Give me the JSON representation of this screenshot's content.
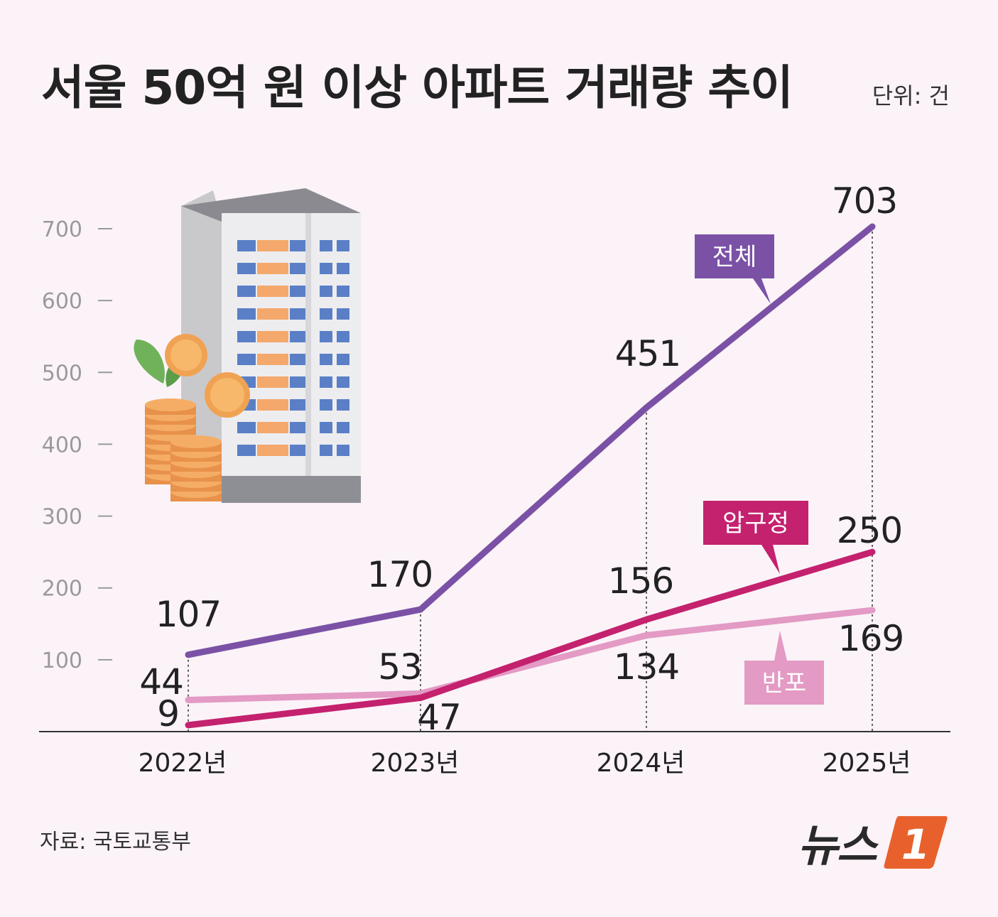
{
  "header": {
    "title": "서울 50억 원 이상 아파트 거래량 추이",
    "unit": "단위: 건"
  },
  "footer": {
    "source": "자료: 국토교통부",
    "logo_text": "뉴스",
    "logo_mark": "1"
  },
  "colors": {
    "total": "#7b51a6",
    "apgujeong": "#c4216e",
    "banpo": "#e39ac4",
    "axis": "#333333",
    "tick": "#999999"
  },
  "chart_data": {
    "type": "line",
    "title": "서울 50억 원 이상 아파트 거래량 추이",
    "categories": [
      "2022년",
      "2023년",
      "2024년",
      "2025년"
    ],
    "ylim": [
      0,
      700
    ],
    "yticks": [
      100,
      200,
      300,
      400,
      500,
      600,
      700
    ],
    "series": [
      {
        "name": "전체",
        "values": [
          107,
          170,
          451,
          703
        ]
      },
      {
        "name": "압구정",
        "values": [
          9,
          47,
          156,
          250
        ]
      },
      {
        "name": "반포",
        "values": [
          44,
          53,
          134,
          169
        ]
      }
    ]
  }
}
